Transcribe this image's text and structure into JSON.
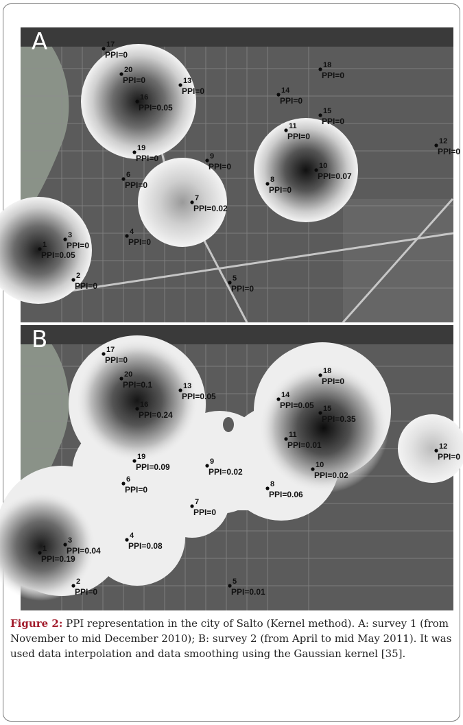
{
  "panels": [
    {
      "letter": "A",
      "points": [
        {
          "id": "17",
          "ppi": "PPI=0",
          "ppi_value": 0
        },
        {
          "id": "20",
          "ppi": "PPI=0",
          "ppi_value": 0
        },
        {
          "id": "13",
          "ppi": "PPI=0",
          "ppi_value": 0
        },
        {
          "id": "16",
          "ppi": "PPI=0.05",
          "ppi_value": 0.05
        },
        {
          "id": "18",
          "ppi": "PPI=0",
          "ppi_value": 0
        },
        {
          "id": "14",
          "ppi": "PPI=0",
          "ppi_value": 0
        },
        {
          "id": "15",
          "ppi": "PPI=0",
          "ppi_value": 0
        },
        {
          "id": "11",
          "ppi": "PPI=0",
          "ppi_value": 0
        },
        {
          "id": "10",
          "ppi": "PPI=0.07",
          "ppi_value": 0.07
        },
        {
          "id": "12",
          "ppi": "PPI=0",
          "ppi_value": 0
        },
        {
          "id": "19",
          "ppi": "PPI=0",
          "ppi_value": 0
        },
        {
          "id": "9",
          "ppi": "PPI=0",
          "ppi_value": 0
        },
        {
          "id": "6",
          "ppi": "PPI=0",
          "ppi_value": 0
        },
        {
          "id": "8",
          "ppi": "PPI=0",
          "ppi_value": 0
        },
        {
          "id": "7",
          "ppi": "PPI=0.02",
          "ppi_value": 0.02
        },
        {
          "id": "3",
          "ppi": "PPI=0",
          "ppi_value": 0
        },
        {
          "id": "4",
          "ppi": "PPI=0",
          "ppi_value": 0
        },
        {
          "id": "1",
          "ppi": "PPI=0.05",
          "ppi_value": 0.05
        },
        {
          "id": "2",
          "ppi": "PPI=0",
          "ppi_value": 0
        },
        {
          "id": "5",
          "ppi": "PPI=0",
          "ppi_value": 0
        }
      ]
    },
    {
      "letter": "B",
      "points": [
        {
          "id": "17",
          "ppi": "PPI=0",
          "ppi_value": 0
        },
        {
          "id": "20",
          "ppi": "PPI=0.1",
          "ppi_value": 0.1
        },
        {
          "id": "13",
          "ppi": "PPI=0.05",
          "ppi_value": 0.05
        },
        {
          "id": "16",
          "ppi": "PPI=0.24",
          "ppi_value": 0.24
        },
        {
          "id": "18",
          "ppi": "PPI=0",
          "ppi_value": 0
        },
        {
          "id": "14",
          "ppi": "PPI=0.05",
          "ppi_value": 0.05
        },
        {
          "id": "15",
          "ppi": "PPI=0.35",
          "ppi_value": 0.35
        },
        {
          "id": "11",
          "ppi": "PPI=0.01",
          "ppi_value": 0.01
        },
        {
          "id": "10",
          "ppi": "PPI=0.02",
          "ppi_value": 0.02
        },
        {
          "id": "12",
          "ppi": "PPI=0",
          "ppi_value": 0
        },
        {
          "id": "19",
          "ppi": "PPI=0.09",
          "ppi_value": 0.09
        },
        {
          "id": "9",
          "ppi": "PPI=0.02",
          "ppi_value": 0.02
        },
        {
          "id": "6",
          "ppi": "PPI=0",
          "ppi_value": 0
        },
        {
          "id": "8",
          "ppi": "PPI=0.06",
          "ppi_value": 0.06
        },
        {
          "id": "7",
          "ppi": "PPI=0",
          "ppi_value": 0
        },
        {
          "id": "3",
          "ppi": "PPI=0.04",
          "ppi_value": 0.04
        },
        {
          "id": "4",
          "ppi": "PPI=0.08",
          "ppi_value": 0.08
        },
        {
          "id": "1",
          "ppi": "PPI=0.19",
          "ppi_value": 0.19
        },
        {
          "id": "2",
          "ppi": "PPI=0",
          "ppi_value": 0
        },
        {
          "id": "5",
          "ppi": "PPI=0.01",
          "ppi_value": 0.01
        }
      ]
    }
  ],
  "caption": {
    "label": "Figure 2:",
    "text": "PPI representation in the city of Salto (Kernel method). A: survey 1 (from November to mid December 2010); B: survey 2 (from April to mid May 2011). It was used data interpolation and data smoothing using the Gaussian kernel [35]."
  },
  "colors": {
    "background": "#5b5b5b",
    "river": "#8a9288",
    "kernel_light": "#f2f2f2",
    "kernel_dark": "#151515"
  }
}
